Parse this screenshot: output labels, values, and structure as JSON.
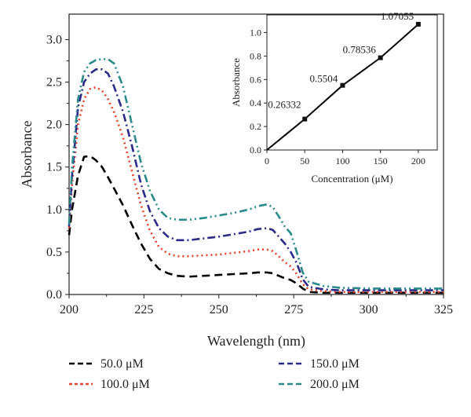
{
  "chart_data": [
    {
      "type": "line",
      "xlabel": "Wavelength (nm)",
      "ylabel": "Absorbance",
      "xlim": [
        200,
        325
      ],
      "ylim": [
        0,
        3.3
      ],
      "xticks": [
        "200",
        "225",
        "250",
        "275",
        "300",
        "325"
      ],
      "yticks": [
        "0.0",
        "0.5",
        "1.0",
        "1.5",
        "2.0",
        "2.5",
        "3.0"
      ],
      "legend_position": "bottom",
      "series": [
        {
          "name": "50.0 μM",
          "color": "#000000",
          "dash": "dashed",
          "x": [
            200,
            201,
            203,
            205,
            207,
            209,
            211,
            213,
            215,
            218,
            221,
            224,
            227,
            230,
            233,
            236,
            240,
            245,
            250,
            255,
            260,
            263,
            266,
            268,
            270,
            272,
            274,
            276,
            278,
            280,
            285,
            290,
            300,
            310,
            325
          ],
          "y": [
            0.7,
            1.0,
            1.4,
            1.62,
            1.63,
            1.58,
            1.5,
            1.38,
            1.25,
            1.05,
            0.82,
            0.6,
            0.42,
            0.3,
            0.25,
            0.22,
            0.21,
            0.22,
            0.23,
            0.24,
            0.25,
            0.26,
            0.26,
            0.25,
            0.22,
            0.19,
            0.17,
            0.13,
            0.07,
            0.03,
            0.02,
            0.02,
            0.02,
            0.02,
            0.02
          ]
        },
        {
          "name": "100.0 μM",
          "color": "#e8402a",
          "dash": "dotted",
          "x": [
            200,
            201,
            203,
            205,
            207,
            209,
            211,
            213,
            215,
            218,
            221,
            224,
            227,
            230,
            233,
            236,
            240,
            245,
            250,
            255,
            260,
            263,
            266,
            268,
            270,
            272,
            274,
            276,
            278,
            280,
            285,
            290,
            300,
            310,
            325
          ],
          "y": [
            0.78,
            1.3,
            2.0,
            2.3,
            2.42,
            2.44,
            2.4,
            2.3,
            2.15,
            1.85,
            1.45,
            1.05,
            0.75,
            0.56,
            0.48,
            0.45,
            0.45,
            0.46,
            0.47,
            0.49,
            0.51,
            0.53,
            0.53,
            0.51,
            0.45,
            0.38,
            0.33,
            0.24,
            0.12,
            0.06,
            0.04,
            0.03,
            0.03,
            0.03,
            0.03
          ]
        },
        {
          "name": "150.0 μM",
          "color": "#2b2a8a",
          "dash": "dashdot",
          "x": [
            200,
            201,
            203,
            205,
            207,
            209,
            211,
            213,
            215,
            218,
            221,
            224,
            227,
            230,
            233,
            236,
            240,
            245,
            250,
            255,
            260,
            263,
            266,
            268,
            270,
            272,
            274,
            276,
            278,
            280,
            285,
            290,
            300,
            310,
            325
          ],
          "y": [
            0.8,
            1.4,
            2.2,
            2.5,
            2.6,
            2.65,
            2.65,
            2.6,
            2.45,
            2.15,
            1.75,
            1.3,
            0.98,
            0.78,
            0.68,
            0.64,
            0.64,
            0.66,
            0.68,
            0.71,
            0.74,
            0.77,
            0.78,
            0.76,
            0.68,
            0.6,
            0.5,
            0.37,
            0.18,
            0.09,
            0.06,
            0.05,
            0.05,
            0.05,
            0.05
          ]
        },
        {
          "name": "200.0 μM",
          "color": "#2a8a8a",
          "dash": "dashdotdot",
          "x": [
            200,
            201,
            203,
            205,
            207,
            209,
            211,
            213,
            215,
            218,
            221,
            224,
            227,
            230,
            233,
            236,
            240,
            245,
            250,
            255,
            260,
            263,
            266,
            268,
            270,
            272,
            274,
            276,
            278,
            280,
            285,
            290,
            300,
            310,
            325
          ],
          "y": [
            0.82,
            1.5,
            2.3,
            2.62,
            2.72,
            2.76,
            2.77,
            2.77,
            2.72,
            2.45,
            2.0,
            1.55,
            1.22,
            1.0,
            0.9,
            0.88,
            0.88,
            0.9,
            0.93,
            0.96,
            1.0,
            1.04,
            1.06,
            1.03,
            0.92,
            0.8,
            0.72,
            0.5,
            0.26,
            0.15,
            0.1,
            0.08,
            0.07,
            0.07,
            0.07
          ]
        }
      ]
    },
    {
      "type": "line",
      "xlabel": "Concentration (μM)",
      "ylabel": "Absorbance",
      "xlim": [
        0,
        225
      ],
      "ylim": [
        0,
        1.15
      ],
      "xticks": [
        "0",
        "50",
        "100",
        "150",
        "200"
      ],
      "yticks": [
        "0.0",
        "0.2",
        "0.4",
        "0.6",
        "0.8",
        "1.0"
      ],
      "series": [
        {
          "color": "#000000",
          "x": [
            0,
            50,
            100,
            150,
            200
          ],
          "y": [
            0,
            0.26332,
            0.5504,
            0.78536,
            1.07055
          ],
          "labels": [
            "0.26332",
            "0.5504",
            "0.78536",
            "1.07055"
          ]
        }
      ]
    }
  ]
}
